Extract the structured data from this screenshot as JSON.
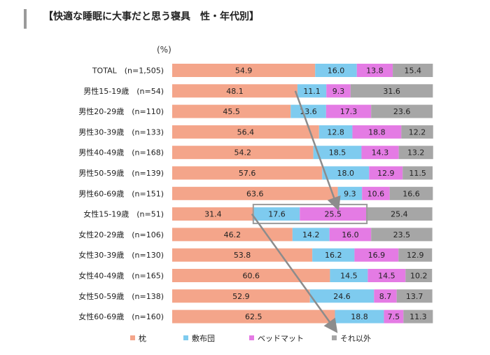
{
  "title": "【快適な睡眠に大事だと思う寝具　性・年代別】",
  "chart_data": {
    "type": "bar",
    "stacked": true,
    "orientation": "horizontal",
    "unit_label": "(%)",
    "categories": [
      "TOTAL　(n=1,505)",
      "男性15-19歳　(n=54)",
      "男性20-29歳　(n=110)",
      "男性30-39歳　(n=133)",
      "男性40-49歳　(n=168)",
      "男性50-59歳　(n=139)",
      "男性60-69歳　(n=151)",
      "女性15-19歳　(n=51)",
      "女性20-29歳　(n=106)",
      "女性30-39歳　(n=130)",
      "女性40-49歳　(n=165)",
      "女性50-59歳　(n=138)",
      "女性60-69歳　(n=160)"
    ],
    "series": [
      {
        "name": "枕",
        "color": "#f4a58a",
        "values": [
          54.9,
          48.1,
          45.5,
          56.4,
          54.2,
          57.6,
          63.6,
          31.4,
          46.2,
          53.8,
          60.6,
          52.9,
          62.5
        ]
      },
      {
        "name": "敷布団",
        "color": "#7ecbef",
        "values": [
          16.0,
          11.1,
          13.6,
          12.8,
          18.5,
          18.0,
          9.3,
          17.6,
          14.2,
          16.2,
          14.5,
          24.6,
          18.8
        ]
      },
      {
        "name": "ベッドマット",
        "color": "#e47be4",
        "values": [
          13.8,
          9.3,
          17.3,
          18.8,
          14.3,
          12.9,
          10.6,
          25.5,
          16.0,
          16.9,
          14.5,
          8.7,
          7.5
        ]
      },
      {
        "name": "それ以外",
        "color": "#a6a6a6",
        "values": [
          15.4,
          31.6,
          23.6,
          12.2,
          13.2,
          11.5,
          16.6,
          25.4,
          23.5,
          12.9,
          10.2,
          13.7,
          11.3
        ]
      }
    ],
    "xlim": [
      0,
      100
    ],
    "legend_position": "bottom",
    "annotations": {
      "highlight_box": {
        "row": "女性15-19歳　(n=51)",
        "series": [
          "敷布団",
          "ベッドマット"
        ]
      },
      "arrows": [
        {
          "from_row": "男性15-19歳　(n=54)",
          "to_row": "男性60-69歳　(n=151)",
          "near_boundary": "枕"
        },
        {
          "from_row": "女性15-19歳　(n=51)",
          "to_row": "女性60-69歳　(n=160)",
          "near_boundary": "枕"
        }
      ]
    }
  }
}
